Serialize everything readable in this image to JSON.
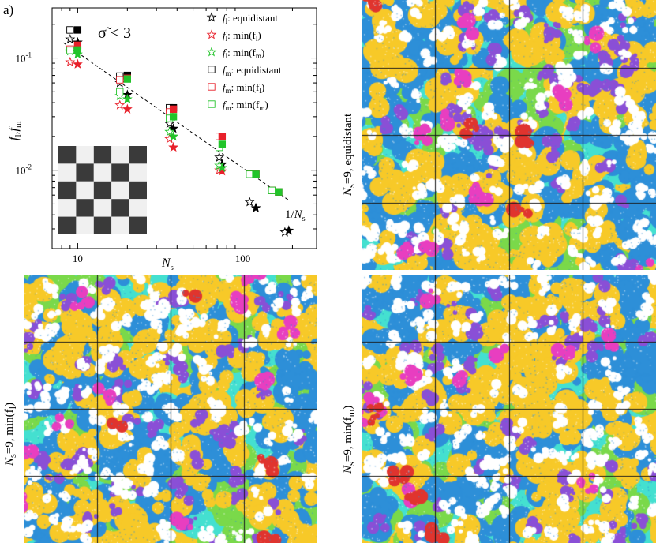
{
  "panel_letter": "a)",
  "chart_data": {
    "type": "scatter",
    "xlabel_base": "N",
    "xlabel_sub": "s",
    "ylabel_a": "f",
    "ylabel_a_sub": "l",
    "ylabel_sep": ",",
    "ylabel_b": "f",
    "ylabel_b_sub": "m",
    "x_scale": "log",
    "y_scale": "log",
    "xlim": [
      7,
      280
    ],
    "ylim": [
      0.002,
      0.28
    ],
    "x_ticks": [
      {
        "v": 10,
        "label": "10"
      },
      {
        "v": 100,
        "label": "100"
      }
    ],
    "y_ticks": [
      {
        "v": 0.01,
        "base": "10",
        "exp": "-2"
      },
      {
        "v": 0.1,
        "base": "10",
        "exp": "-1"
      }
    ],
    "condition_label": "σ̃ < 3",
    "reference_line": {
      "label_num": "1/",
      "label_base": "N",
      "label_sub": "s",
      "from": [
        8.2,
        0.137
      ],
      "to": [
        190,
        0.0054
      ]
    },
    "legend_position": "top-right",
    "series": [
      {
        "name_base": "f",
        "name_sub": "l",
        "name_rest": ": equidistant",
        "marker": "star",
        "color": "#000000",
        "points_open": [
          [
            9,
            0.147
          ],
          [
            18,
            0.06
          ],
          [
            36,
            0.026
          ],
          [
            72,
            0.013
          ],
          [
            110,
            0.0052
          ],
          [
            180,
            0.0028
          ]
        ],
        "points_filled": [
          [
            10,
            0.138
          ],
          [
            20,
            0.047
          ],
          [
            38,
            0.0235
          ],
          [
            75,
            0.0113
          ],
          [
            120,
            0.0046
          ],
          [
            190,
            0.0029
          ]
        ]
      },
      {
        "name_base": "f",
        "name_sub": "l",
        "name_rest": ": min(f",
        "name_sub2": "l",
        "name_rest2": ")",
        "marker": "star",
        "color": "#e8202a",
        "points_open": [
          [
            9,
            0.092
          ],
          [
            18,
            0.038
          ],
          [
            36,
            0.019
          ],
          [
            72,
            0.01
          ]
        ],
        "points_filled": [
          [
            10,
            0.088
          ],
          [
            20,
            0.035
          ],
          [
            38,
            0.016
          ],
          [
            75,
            0.0098
          ]
        ]
      },
      {
        "name_base": "f",
        "name_sub": "l",
        "name_rest": ": min(f",
        "name_sub2": "m",
        "name_rest2": ")",
        "marker": "star",
        "color": "#22c42a",
        "points_open": [
          [
            9,
            0.115
          ],
          [
            18,
            0.046
          ],
          [
            36,
            0.022
          ],
          [
            72,
            0.011
          ]
        ],
        "points_filled": [
          [
            10,
            0.108
          ],
          [
            20,
            0.043
          ],
          [
            38,
            0.02
          ],
          [
            75,
            0.0105
          ]
        ]
      },
      {
        "name_base": "f",
        "name_sub": "m",
        "name_rest": ": equidistant",
        "marker": "square",
        "color": "#000000",
        "points_open": [
          [
            9,
            0.178
          ],
          [
            18,
            0.069
          ],
          [
            36,
            0.036
          ],
          [
            72,
            0.02
          ],
          [
            110,
            0.0092
          ],
          [
            150,
            0.0066
          ]
        ],
        "points_filled": [
          [
            10,
            0.178
          ],
          [
            20,
            0.07
          ],
          [
            38,
            0.036
          ],
          [
            75,
            0.02
          ],
          [
            120,
            0.0092
          ],
          [
            165,
            0.0064
          ]
        ]
      },
      {
        "name_base": "f",
        "name_sub": "m",
        "name_rest": ": min(f",
        "name_sub2": "l",
        "name_rest2": ")",
        "marker": "square",
        "color": "#e8202a",
        "points_open": [
          [
            9,
            0.12
          ],
          [
            18,
            0.064
          ],
          [
            36,
            0.033
          ],
          [
            72,
            0.02
          ],
          [
            110,
            0.0092
          ],
          [
            150,
            0.0066
          ]
        ],
        "points_filled": [
          [
            10,
            0.13
          ],
          [
            20,
            0.066
          ],
          [
            38,
            0.035
          ],
          [
            75,
            0.02
          ],
          [
            120,
            0.0092
          ],
          [
            165,
            0.0064
          ]
        ]
      },
      {
        "name_base": "f",
        "name_sub": "m",
        "name_rest": ": min(f",
        "name_sub2": "m",
        "name_rest2": ")",
        "marker": "square",
        "color": "#22c42a",
        "points_open": [
          [
            9,
            0.117
          ],
          [
            18,
            0.05
          ],
          [
            36,
            0.029
          ],
          [
            72,
            0.016
          ],
          [
            110,
            0.0092
          ],
          [
            150,
            0.0066
          ]
        ],
        "points_filled": [
          [
            10,
            0.118
          ],
          [
            20,
            0.065
          ],
          [
            38,
            0.03
          ],
          [
            75,
            0.017
          ],
          [
            120,
            0.0092
          ],
          [
            165,
            0.0064
          ]
        ]
      }
    ]
  },
  "inset_checkerboard": {
    "rows": 5,
    "cols": 5,
    "dark": "#3a3a3a",
    "light": "#f0f0f0"
  },
  "image_panels": [
    {
      "id": "top-right",
      "label_base": "N",
      "label_sub": "s",
      "label_rest": "=9, equidistant"
    },
    {
      "id": "bottom-left",
      "label_base": "N",
      "label_sub": "s",
      "label_rest": "=9, min(f",
      "label_sub2": "l",
      "label_rest2": ")"
    },
    {
      "id": "bottom-right",
      "label_base": "N",
      "label_sub": "s",
      "label_rest": "=9, min(f",
      "label_sub2": "m",
      "label_rest2": ")"
    }
  ],
  "texture_palette": [
    "#f7c928",
    "#2d8fd8",
    "#44e0d0",
    "#7ad94a",
    "#8a4fd6",
    "#e83ec0",
    "#e0342e",
    "#ffffff"
  ]
}
